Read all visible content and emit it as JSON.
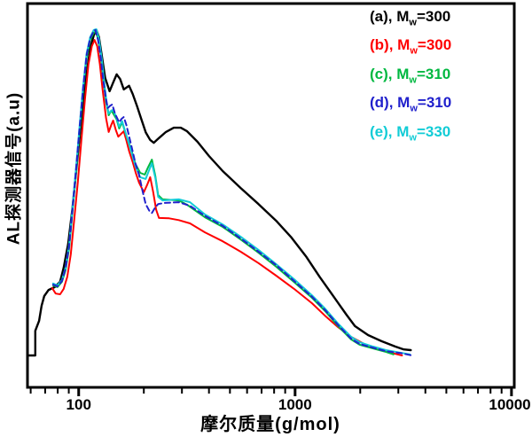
{
  "chart_data": {
    "type": "line",
    "title": "",
    "xlabel": "摩尔质量(g/mol)",
    "ylabel": "AL探测器信号(a.u)",
    "x_scale": "log",
    "x_range": [
      58,
      10300
    ],
    "y_range": [
      0,
      1.07
    ],
    "y_units": "a.u (arbitrary, unlabeled axis)",
    "grid": "off",
    "legend_position": "top-right",
    "x_major_ticks": [
      {
        "value": 100,
        "label": "100"
      },
      {
        "value": 1000,
        "label": "1000"
      },
      {
        "value": 10000,
        "label": "10000"
      }
    ],
    "x_minor_ticks": [
      60,
      70,
      80,
      90,
      200,
      300,
      400,
      500,
      600,
      700,
      800,
      900,
      2000,
      3000,
      4000,
      5000,
      6000,
      7000,
      8000,
      9000
    ],
    "series": [
      {
        "id": "a",
        "legend_before": "(a), M",
        "legend_sub": "w",
        "legend_after": "=300",
        "color": "#000000",
        "style": "solid",
        "width": 2.4,
        "z": 1,
        "points": [
          [
            58.5,
            0.089
          ],
          [
            63,
            0.089
          ],
          [
            63,
            0.158
          ],
          [
            65.6,
            0.186
          ],
          [
            67.4,
            0.228
          ],
          [
            69.3,
            0.255
          ],
          [
            72.6,
            0.272
          ],
          [
            77.5,
            0.28
          ],
          [
            82.1,
            0.295
          ],
          [
            85.2,
            0.334
          ],
          [
            89.4,
            0.401
          ],
          [
            93.6,
            0.5
          ],
          [
            98.1,
            0.624
          ],
          [
            103,
            0.748
          ],
          [
            107.8,
            0.859
          ],
          [
            113,
            0.946
          ],
          [
            117.3,
            0.983
          ],
          [
            120.7,
            0.998
          ],
          [
            124.1,
            0.978
          ],
          [
            127.7,
            0.928
          ],
          [
            132.6,
            0.864
          ],
          [
            138.9,
            0.827
          ],
          [
            144.3,
            0.851
          ],
          [
            149.8,
            0.874
          ],
          [
            155.5,
            0.861
          ],
          [
            161.6,
            0.832
          ],
          [
            171,
            0.842
          ],
          [
            177.7,
            0.819
          ],
          [
            186.2,
            0.785
          ],
          [
            194.9,
            0.748
          ],
          [
            204.2,
            0.712
          ],
          [
            213.9,
            0.691
          ],
          [
            222.3,
            0.683
          ],
          [
            234.7,
            0.696
          ],
          [
            252.9,
            0.713
          ],
          [
            275.1,
            0.725
          ],
          [
            296.3,
            0.725
          ],
          [
            317,
            0.715
          ],
          [
            354,
            0.686
          ],
          [
            400,
            0.646
          ],
          [
            463,
            0.604
          ],
          [
            560,
            0.557
          ],
          [
            677,
            0.512
          ],
          [
            818,
            0.465
          ],
          [
            963,
            0.418
          ],
          [
            1128,
            0.364
          ],
          [
            1297,
            0.309
          ],
          [
            1493,
            0.257
          ],
          [
            1727,
            0.203
          ],
          [
            1890,
            0.171
          ],
          [
            2174,
            0.146
          ],
          [
            2510,
            0.129
          ],
          [
            2898,
            0.114
          ],
          [
            3180,
            0.106
          ],
          [
            3425,
            0.104
          ]
        ]
      },
      {
        "id": "b",
        "legend_before": "(b), M",
        "legend_sub": "w",
        "legend_after": "=300",
        "color": "#ff0000",
        "style": "solid",
        "width": 2,
        "z": 2,
        "points": [
          [
            75.5,
            0.277
          ],
          [
            78.3,
            0.262
          ],
          [
            82.1,
            0.26
          ],
          [
            85.2,
            0.275
          ],
          [
            88.6,
            0.309
          ],
          [
            91.9,
            0.371
          ],
          [
            95.4,
            0.468
          ],
          [
            99.1,
            0.574
          ],
          [
            102.9,
            0.691
          ],
          [
            106.9,
            0.804
          ],
          [
            110.9,
            0.901
          ],
          [
            115.1,
            0.953
          ],
          [
            118.4,
            0.97
          ],
          [
            121.8,
            0.953
          ],
          [
            125.3,
            0.903
          ],
          [
            128.9,
            0.834
          ],
          [
            133.8,
            0.752
          ],
          [
            137.6,
            0.713
          ],
          [
            141.5,
            0.733
          ],
          [
            144.3,
            0.745
          ],
          [
            148.5,
            0.718
          ],
          [
            152.4,
            0.7
          ],
          [
            157,
            0.708
          ],
          [
            161.6,
            0.715
          ],
          [
            166,
            0.69
          ],
          [
            171,
            0.66
          ],
          [
            177.7,
            0.629
          ],
          [
            183.6,
            0.599
          ],
          [
            190,
            0.572
          ],
          [
            200,
            0.545
          ],
          [
            207,
            0.565
          ],
          [
            214,
            0.587
          ],
          [
            221,
            0.545
          ],
          [
            228,
            0.496
          ],
          [
            235,
            0.473
          ],
          [
            262,
            0.472
          ],
          [
            290,
            0.467
          ],
          [
            327,
            0.458
          ],
          [
            383,
            0.433
          ],
          [
            463,
            0.408
          ],
          [
            560,
            0.379
          ],
          [
            677,
            0.347
          ],
          [
            818,
            0.312
          ],
          [
            990,
            0.275
          ],
          [
            1197,
            0.235
          ],
          [
            1375,
            0.2
          ],
          [
            1580,
            0.168
          ],
          [
            1815,
            0.141
          ],
          [
            2087,
            0.121
          ],
          [
            2400,
            0.106
          ],
          [
            2760,
            0.097
          ],
          [
            3120,
            0.089
          ]
        ]
      },
      {
        "id": "c",
        "legend_before": "(c), M",
        "legend_sub": "w",
        "legend_after": "=310",
        "color": "#00b840",
        "style": "solid",
        "width": 2,
        "z": 3,
        "points": [
          [
            76.2,
            0.285
          ],
          [
            79.8,
            0.28
          ],
          [
            83.7,
            0.295
          ],
          [
            86.9,
            0.327
          ],
          [
            90.4,
            0.389
          ],
          [
            93.6,
            0.488
          ],
          [
            97.2,
            0.599
          ],
          [
            100.9,
            0.715
          ],
          [
            104.8,
            0.827
          ],
          [
            108.8,
            0.921
          ],
          [
            113,
            0.97
          ],
          [
            117.3,
            0.99
          ],
          [
            120,
            0.993
          ],
          [
            122.9,
            0.973
          ],
          [
            126.4,
            0.928
          ],
          [
            130.1,
            0.859
          ],
          [
            133.8,
            0.797
          ],
          [
            137.6,
            0.76
          ],
          [
            141.5,
            0.773
          ],
          [
            144.3,
            0.765
          ],
          [
            149.8,
            0.748
          ],
          [
            153.9,
            0.723
          ],
          [
            158.9,
            0.74
          ],
          [
            164.5,
            0.71
          ],
          [
            174.4,
            0.666
          ],
          [
            182.8,
            0.624
          ],
          [
            192.4,
            0.599
          ],
          [
            202,
            0.594
          ],
          [
            209,
            0.614
          ],
          [
            218,
            0.636
          ],
          [
            226,
            0.59
          ],
          [
            233,
            0.537
          ],
          [
            244,
            0.525
          ],
          [
            290,
            0.522
          ],
          [
            317,
            0.51
          ],
          [
            383,
            0.475
          ],
          [
            463,
            0.448
          ],
          [
            560,
            0.413
          ],
          [
            677,
            0.376
          ],
          [
            818,
            0.337
          ],
          [
            990,
            0.294
          ],
          [
            1197,
            0.25
          ],
          [
            1375,
            0.213
          ],
          [
            1580,
            0.171
          ],
          [
            1815,
            0.134
          ],
          [
            1988,
            0.119
          ],
          [
            2287,
            0.109
          ],
          [
            2632,
            0.099
          ],
          [
            2850,
            0.092
          ]
        ]
      },
      {
        "id": "d",
        "legend_before": "(d), M",
        "legend_sub": "w",
        "legend_after": "=310",
        "color": "#2020cc",
        "style": "dashed",
        "width": 2,
        "z": 5,
        "points": [
          [
            76.2,
            0.287
          ],
          [
            79.8,
            0.282
          ],
          [
            83.7,
            0.297
          ],
          [
            86.9,
            0.332
          ],
          [
            90.4,
            0.396
          ],
          [
            93.6,
            0.495
          ],
          [
            97.2,
            0.606
          ],
          [
            100.9,
            0.723
          ],
          [
            104.8,
            0.834
          ],
          [
            108.8,
            0.928
          ],
          [
            113,
            0.975
          ],
          [
            117.3,
            0.995
          ],
          [
            119.5,
            0.998
          ],
          [
            122.9,
            0.97
          ],
          [
            126.4,
            0.921
          ],
          [
            130.1,
            0.854
          ],
          [
            133.8,
            0.804
          ],
          [
            136.4,
            0.78
          ],
          [
            139.5,
            0.786
          ],
          [
            142.9,
            0.79
          ],
          [
            147,
            0.765
          ],
          [
            153.9,
            0.74
          ],
          [
            158,
            0.75
          ],
          [
            161.6,
            0.755
          ],
          [
            166,
            0.733
          ],
          [
            175,
            0.675
          ],
          [
            183,
            0.625
          ],
          [
            190,
            0.594
          ],
          [
            197,
            0.55
          ],
          [
            204,
            0.512
          ],
          [
            212,
            0.493
          ],
          [
            218,
            0.487
          ],
          [
            226,
            0.503
          ],
          [
            233,
            0.512
          ],
          [
            250,
            0.515
          ],
          [
            290,
            0.517
          ],
          [
            327,
            0.507
          ],
          [
            383,
            0.479
          ],
          [
            463,
            0.451
          ],
          [
            560,
            0.416
          ],
          [
            677,
            0.379
          ],
          [
            818,
            0.341
          ],
          [
            990,
            0.297
          ],
          [
            1197,
            0.253
          ],
          [
            1375,
            0.216
          ],
          [
            1580,
            0.174
          ],
          [
            1815,
            0.136
          ],
          [
            1988,
            0.121
          ],
          [
            2287,
            0.111
          ],
          [
            2632,
            0.101
          ],
          [
            3055,
            0.096
          ],
          [
            3465,
            0.089
          ]
        ]
      },
      {
        "id": "e",
        "legend_before": "(e), M",
        "legend_sub": "w",
        "legend_after": "=330",
        "color": "#12ccd6",
        "style": "solid",
        "width": 2,
        "z": 4,
        "points": [
          [
            76.2,
            0.29
          ],
          [
            79.8,
            0.285
          ],
          [
            83.7,
            0.3
          ],
          [
            86.9,
            0.334
          ],
          [
            90.4,
            0.401
          ],
          [
            93.6,
            0.5
          ],
          [
            97.2,
            0.611
          ],
          [
            100.9,
            0.728
          ],
          [
            104.8,
            0.839
          ],
          [
            108.8,
            0.933
          ],
          [
            113,
            0.978
          ],
          [
            117.3,
            0.998
          ],
          [
            120.7,
            1.0
          ],
          [
            124.1,
            0.973
          ],
          [
            127.7,
            0.918
          ],
          [
            131.4,
            0.849
          ],
          [
            135.1,
            0.789
          ],
          [
            137.6,
            0.765
          ],
          [
            141.5,
            0.772
          ],
          [
            144.3,
            0.775
          ],
          [
            149.8,
            0.752
          ],
          [
            153.9,
            0.728
          ],
          [
            158.9,
            0.743
          ],
          [
            164.5,
            0.712
          ],
          [
            174.4,
            0.661
          ],
          [
            182.8,
            0.618
          ],
          [
            192.4,
            0.587
          ],
          [
            204,
            0.582
          ],
          [
            211,
            0.605
          ],
          [
            218,
            0.626
          ],
          [
            226,
            0.585
          ],
          [
            233,
            0.532
          ],
          [
            244,
            0.522
          ],
          [
            290,
            0.525
          ],
          [
            327,
            0.517
          ],
          [
            383,
            0.483
          ],
          [
            463,
            0.455
          ],
          [
            560,
            0.421
          ],
          [
            677,
            0.384
          ],
          [
            818,
            0.344
          ],
          [
            990,
            0.302
          ],
          [
            1197,
            0.257
          ],
          [
            1375,
            0.22
          ],
          [
            1580,
            0.178
          ],
          [
            1815,
            0.141
          ],
          [
            1988,
            0.126
          ],
          [
            2287,
            0.114
          ],
          [
            2632,
            0.104
          ],
          [
            3055,
            0.097
          ],
          [
            3395,
            0.092
          ]
        ]
      }
    ]
  },
  "legend": {
    "items": [
      {
        "id": "a",
        "text_before": "(a), M",
        "sub": "w",
        "text_after": "=300",
        "color": "#000000"
      },
      {
        "id": "b",
        "text_before": "(b), M",
        "sub": "w",
        "text_after": "=300",
        "color": "#ff0000"
      },
      {
        "id": "c",
        "text_before": "(c), M",
        "sub": "w",
        "text_after": "=310",
        "color": "#00b840"
      },
      {
        "id": "d",
        "text_before": "(d), M",
        "sub": "w",
        "text_after": "=310",
        "color": "#2020cc"
      },
      {
        "id": "e",
        "text_before": "(e), M",
        "sub": "w",
        "text_after": "=330",
        "color": "#12ccd6"
      }
    ]
  },
  "axes": {
    "x": {
      "label": "摩尔质量(g/mol)"
    },
    "y": {
      "label": "AL探测器信号(a.u)"
    }
  }
}
